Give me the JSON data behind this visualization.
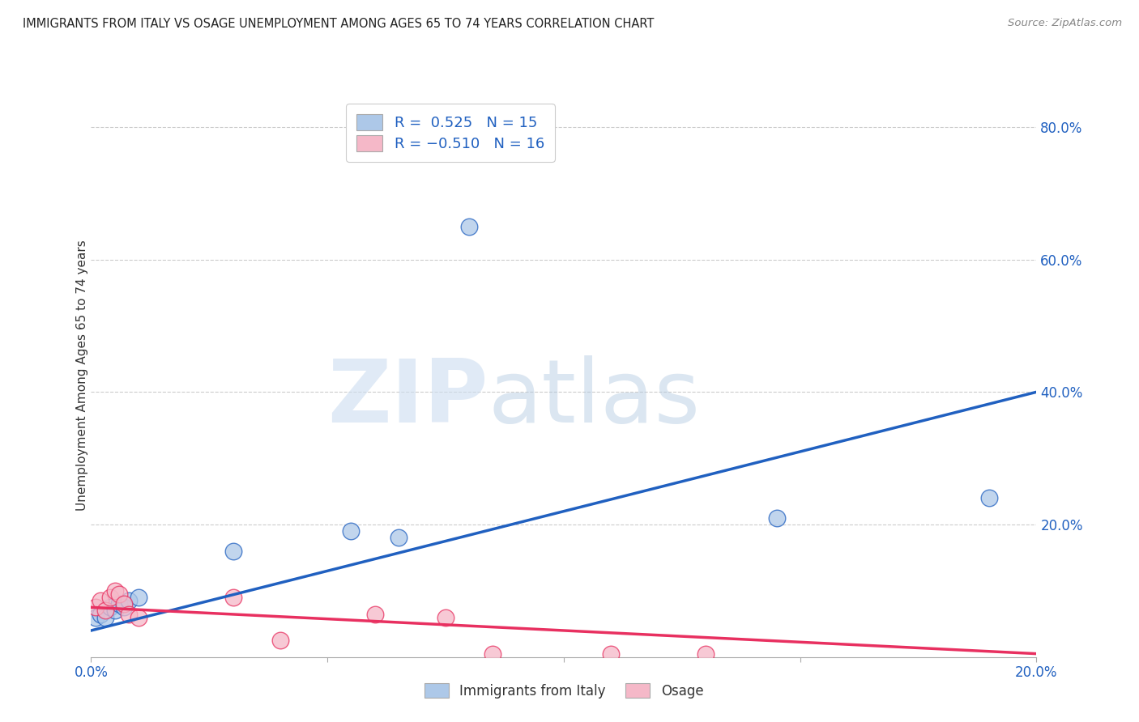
{
  "title": "IMMIGRANTS FROM ITALY VS OSAGE UNEMPLOYMENT AMONG AGES 65 TO 74 YEARS CORRELATION CHART",
  "source": "Source: ZipAtlas.com",
  "ylabel": "Unemployment Among Ages 65 to 74 years",
  "legend_italy": "Immigrants from Italy",
  "legend_osage": "Osage",
  "R_italy": 0.525,
  "N_italy": 15,
  "R_osage": -0.51,
  "N_osage": 16,
  "italy_color": "#adc8e8",
  "italy_line_color": "#2060c0",
  "osage_color": "#f5b8c8",
  "osage_line_color": "#e83060",
  "background_color": "#ffffff",
  "xlim": [
    0.0,
    0.2
  ],
  "ylim": [
    0.0,
    0.85
  ],
  "italy_scatter_x": [
    0.001,
    0.002,
    0.003,
    0.004,
    0.005,
    0.006,
    0.007,
    0.008,
    0.01,
    0.03,
    0.055,
    0.065,
    0.08,
    0.145,
    0.19
  ],
  "italy_scatter_y": [
    0.06,
    0.065,
    0.06,
    0.075,
    0.07,
    0.08,
    0.075,
    0.085,
    0.09,
    0.16,
    0.19,
    0.18,
    0.65,
    0.21,
    0.24
  ],
  "osage_scatter_x": [
    0.001,
    0.002,
    0.003,
    0.004,
    0.005,
    0.006,
    0.007,
    0.008,
    0.01,
    0.03,
    0.04,
    0.06,
    0.075,
    0.085,
    0.11,
    0.13
  ],
  "osage_scatter_y": [
    0.075,
    0.085,
    0.07,
    0.09,
    0.1,
    0.095,
    0.08,
    0.065,
    0.06,
    0.09,
    0.025,
    0.065,
    0.06,
    0.005,
    0.005,
    0.005
  ],
  "grid_color": "#cccccc",
  "italy_line_x": [
    0.0,
    0.2
  ],
  "italy_line_y": [
    0.04,
    0.4
  ],
  "osage_line_x": [
    0.0,
    0.2
  ],
  "osage_line_y": [
    0.075,
    0.005
  ]
}
